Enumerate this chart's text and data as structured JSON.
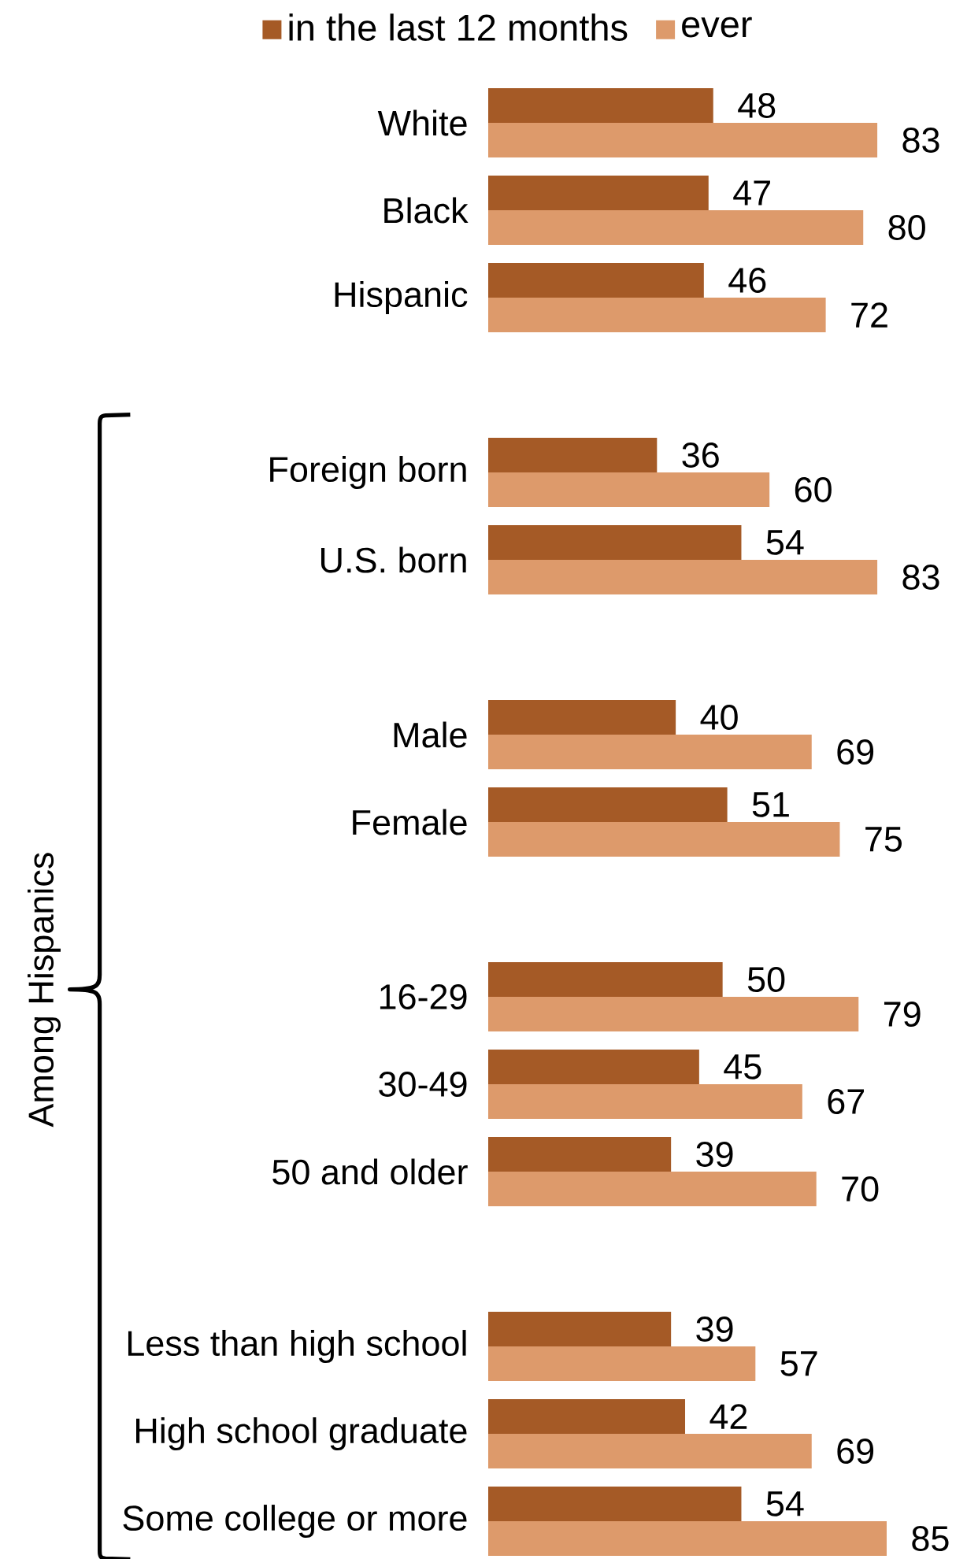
{
  "chart_data": {
    "type": "bar",
    "orientation": "horizontal",
    "categories": [
      "White",
      "Black",
      "Hispanic",
      null,
      "Foreign born",
      "U.S. born",
      null,
      "Male",
      "Female",
      null,
      "16-29",
      "30-49",
      "50 and older",
      null,
      "Less than high school",
      "High school graduate",
      "Some college or more"
    ],
    "series": [
      {
        "name": "in the last 12 months",
        "color": "#a55a26",
        "values": [
          48,
          47,
          46,
          null,
          36,
          54,
          null,
          40,
          51,
          null,
          50,
          45,
          39,
          null,
          39,
          42,
          54
        ]
      },
      {
        "name": "ever",
        "color": "#dd9a6b",
        "values": [
          83,
          80,
          72,
          null,
          60,
          83,
          null,
          69,
          75,
          null,
          79,
          67,
          70,
          null,
          57,
          69,
          85
        ]
      }
    ],
    "xlim": [
      0,
      85
    ],
    "tick_labels": "y",
    "data_labels": true,
    "legend": "top",
    "annotations": [
      "Among Hispanics"
    ]
  }
}
